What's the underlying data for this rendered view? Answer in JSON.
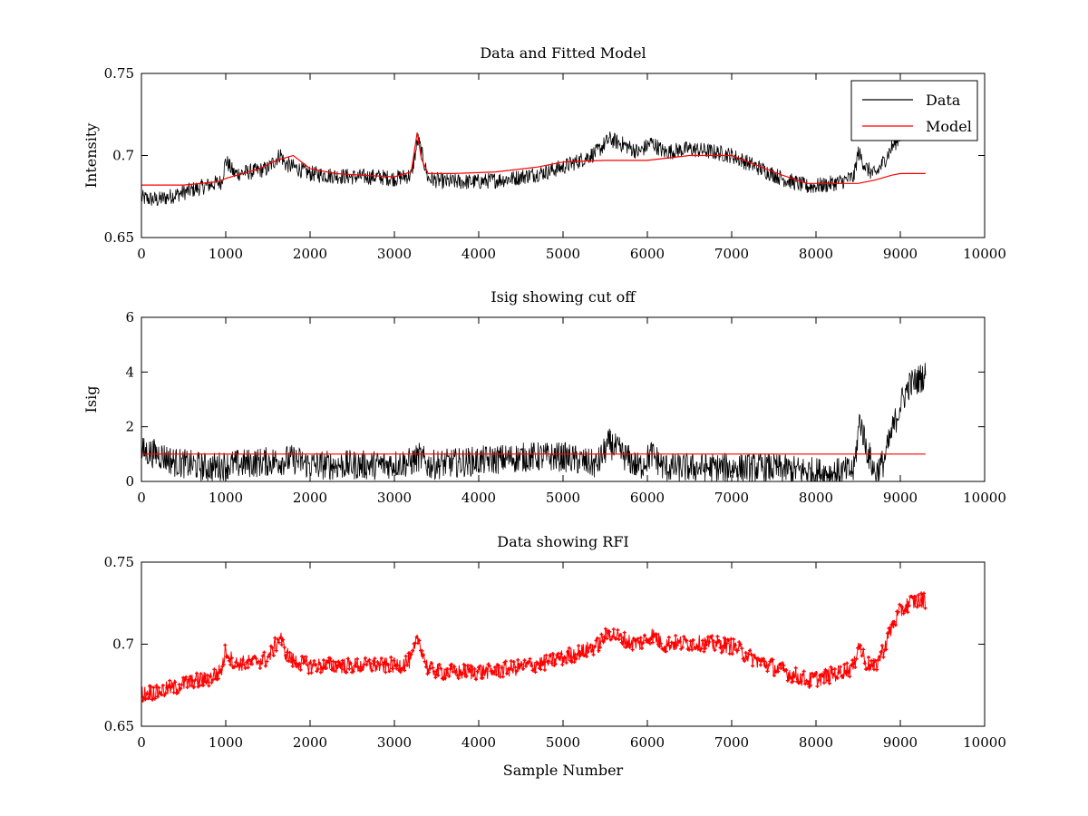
{
  "chart_data": [
    {
      "type": "line",
      "title": "Data and Fitted Model",
      "xlabel": "",
      "ylabel": "Intensity",
      "xlim": [
        0,
        10000
      ],
      "ylim": [
        0.65,
        0.75
      ],
      "xticks": [
        0,
        1000,
        2000,
        3000,
        4000,
        5000,
        6000,
        7000,
        8000,
        9000,
        10000
      ],
      "yticks": [
        0.65,
        0.7,
        0.75
      ],
      "ytick_labels": [
        "0.65",
        "0.7",
        "0.75"
      ],
      "grid": false,
      "legend": {
        "placement": "top-right",
        "entries": [
          "Data",
          "Model"
        ]
      },
      "series": [
        {
          "name": "Data",
          "color": "#000000",
          "style": "noisy-line",
          "noise": 0.005,
          "x": [
            0,
            200,
            400,
            600,
            800,
            950,
            1000,
            1100,
            1300,
            1500,
            1650,
            1700,
            1800,
            2000,
            2200,
            2500,
            2800,
            3000,
            3200,
            3280,
            3350,
            3400,
            3600,
            4000,
            4400,
            4800,
            5000,
            5200,
            5400,
            5550,
            5700,
            5900,
            6050,
            6200,
            6500,
            6800,
            7000,
            7300,
            7600,
            7900,
            8100,
            8300,
            8450,
            8500,
            8600,
            8700,
            8800,
            8900,
            9000
          ],
          "y": [
            0.674,
            0.673,
            0.676,
            0.679,
            0.682,
            0.684,
            0.697,
            0.689,
            0.69,
            0.692,
            0.701,
            0.695,
            0.693,
            0.689,
            0.688,
            0.687,
            0.687,
            0.686,
            0.688,
            0.71,
            0.696,
            0.686,
            0.684,
            0.684,
            0.686,
            0.69,
            0.693,
            0.697,
            0.702,
            0.71,
            0.707,
            0.702,
            0.708,
            0.702,
            0.704,
            0.702,
            0.7,
            0.693,
            0.686,
            0.681,
            0.682,
            0.684,
            0.687,
            0.702,
            0.692,
            0.688,
            0.696,
            0.705,
            0.712
          ]
        },
        {
          "name": "Model",
          "color": "#ff0000",
          "style": "line",
          "x": [
            0,
            500,
            900,
            1000,
            1200,
            1400,
            1600,
            1800,
            2000,
            2300,
            2600,
            3000,
            3200,
            3270,
            3320,
            3400,
            3700,
            4200,
            4700,
            5000,
            5500,
            6000,
            6500,
            7000,
            7300,
            7600,
            7900,
            8200,
            8500,
            8700,
            8900,
            9000,
            9300
          ],
          "y": [
            0.682,
            0.682,
            0.684,
            0.686,
            0.689,
            0.692,
            0.697,
            0.7,
            0.692,
            0.689,
            0.688,
            0.687,
            0.69,
            0.714,
            0.698,
            0.689,
            0.689,
            0.69,
            0.693,
            0.696,
            0.697,
            0.697,
            0.7,
            0.7,
            0.694,
            0.688,
            0.683,
            0.683,
            0.683,
            0.685,
            0.688,
            0.689,
            0.689
          ]
        }
      ]
    },
    {
      "type": "line",
      "title": "Isig showing cut off",
      "xlabel": "",
      "ylabel": "Isig",
      "xlim": [
        0,
        10000
      ],
      "ylim": [
        0,
        6
      ],
      "xticks": [
        0,
        1000,
        2000,
        3000,
        4000,
        5000,
        6000,
        7000,
        8000,
        9000,
        10000
      ],
      "yticks": [
        0,
        2,
        4,
        6
      ],
      "ytick_labels": [
        "0",
        "2",
        "4",
        "6"
      ],
      "grid": false,
      "series": [
        {
          "color": "#000000",
          "style": "noisy-line",
          "noise": 0.55,
          "floor": 0,
          "x": [
            0,
            200,
            400,
            600,
            800,
            1000,
            1400,
            1800,
            2000,
            2400,
            2800,
            3200,
            3300,
            3400,
            3800,
            4200,
            4600,
            5000,
            5400,
            5550,
            5700,
            5900,
            6050,
            6200,
            6600,
            7000,
            7400,
            7800,
            8200,
            8450,
            8520,
            8600,
            8700,
            8800,
            8900,
            9000,
            9100,
            9300
          ],
          "y": [
            1.1,
            1.0,
            0.7,
            0.6,
            0.5,
            0.6,
            0.7,
            0.8,
            0.6,
            0.6,
            0.6,
            0.7,
            0.9,
            0.6,
            0.7,
            0.8,
            0.9,
            0.9,
            0.6,
            1.4,
            1.0,
            0.5,
            1.0,
            0.5,
            0.5,
            0.5,
            0.5,
            0.4,
            0.3,
            0.4,
            2.3,
            1.2,
            0.3,
            0.7,
            1.8,
            2.8,
            3.5,
            3.9
          ]
        },
        {
          "color": "#ff0000",
          "style": "line",
          "x": [
            0,
            9300
          ],
          "y": [
            1.0,
            1.0
          ]
        }
      ]
    },
    {
      "type": "scatter",
      "title": "Data showing RFI",
      "xlabel": "Sample Number",
      "ylabel": "",
      "xlim": [
        0,
        10000
      ],
      "ylim": [
        0.65,
        0.75
      ],
      "xticks": [
        0,
        1000,
        2000,
        3000,
        4000,
        5000,
        6000,
        7000,
        8000,
        9000,
        10000
      ],
      "yticks": [
        0.65,
        0.7,
        0.75
      ],
      "ytick_labels": [
        "0.65",
        "0.7",
        "0.75"
      ],
      "grid": false,
      "series": [
        {
          "color": "#ff0000",
          "style": "noisy-markers",
          "noise": 0.005,
          "x": [
            0,
            200,
            400,
            600,
            800,
            950,
            1000,
            1100,
            1300,
            1500,
            1650,
            1700,
            1800,
            2000,
            2200,
            2500,
            2800,
            3000,
            3200,
            3280,
            3350,
            3400,
            3600,
            4000,
            4400,
            4800,
            5000,
            5200,
            5400,
            5550,
            5700,
            5900,
            6050,
            6200,
            6500,
            6800,
            7000,
            7300,
            7600,
            7900,
            8100,
            8300,
            8450,
            8500,
            8600,
            8700,
            8800,
            8900,
            9000,
            9100,
            9300
          ],
          "y": [
            0.67,
            0.671,
            0.674,
            0.677,
            0.679,
            0.684,
            0.697,
            0.688,
            0.689,
            0.691,
            0.705,
            0.695,
            0.69,
            0.687,
            0.687,
            0.687,
            0.687,
            0.687,
            0.69,
            0.704,
            0.692,
            0.685,
            0.683,
            0.683,
            0.685,
            0.689,
            0.692,
            0.695,
            0.699,
            0.707,
            0.703,
            0.7,
            0.706,
            0.7,
            0.701,
            0.7,
            0.699,
            0.69,
            0.684,
            0.678,
            0.68,
            0.683,
            0.686,
            0.701,
            0.688,
            0.686,
            0.697,
            0.71,
            0.72,
            0.725,
            0.727
          ]
        }
      ]
    }
  ]
}
